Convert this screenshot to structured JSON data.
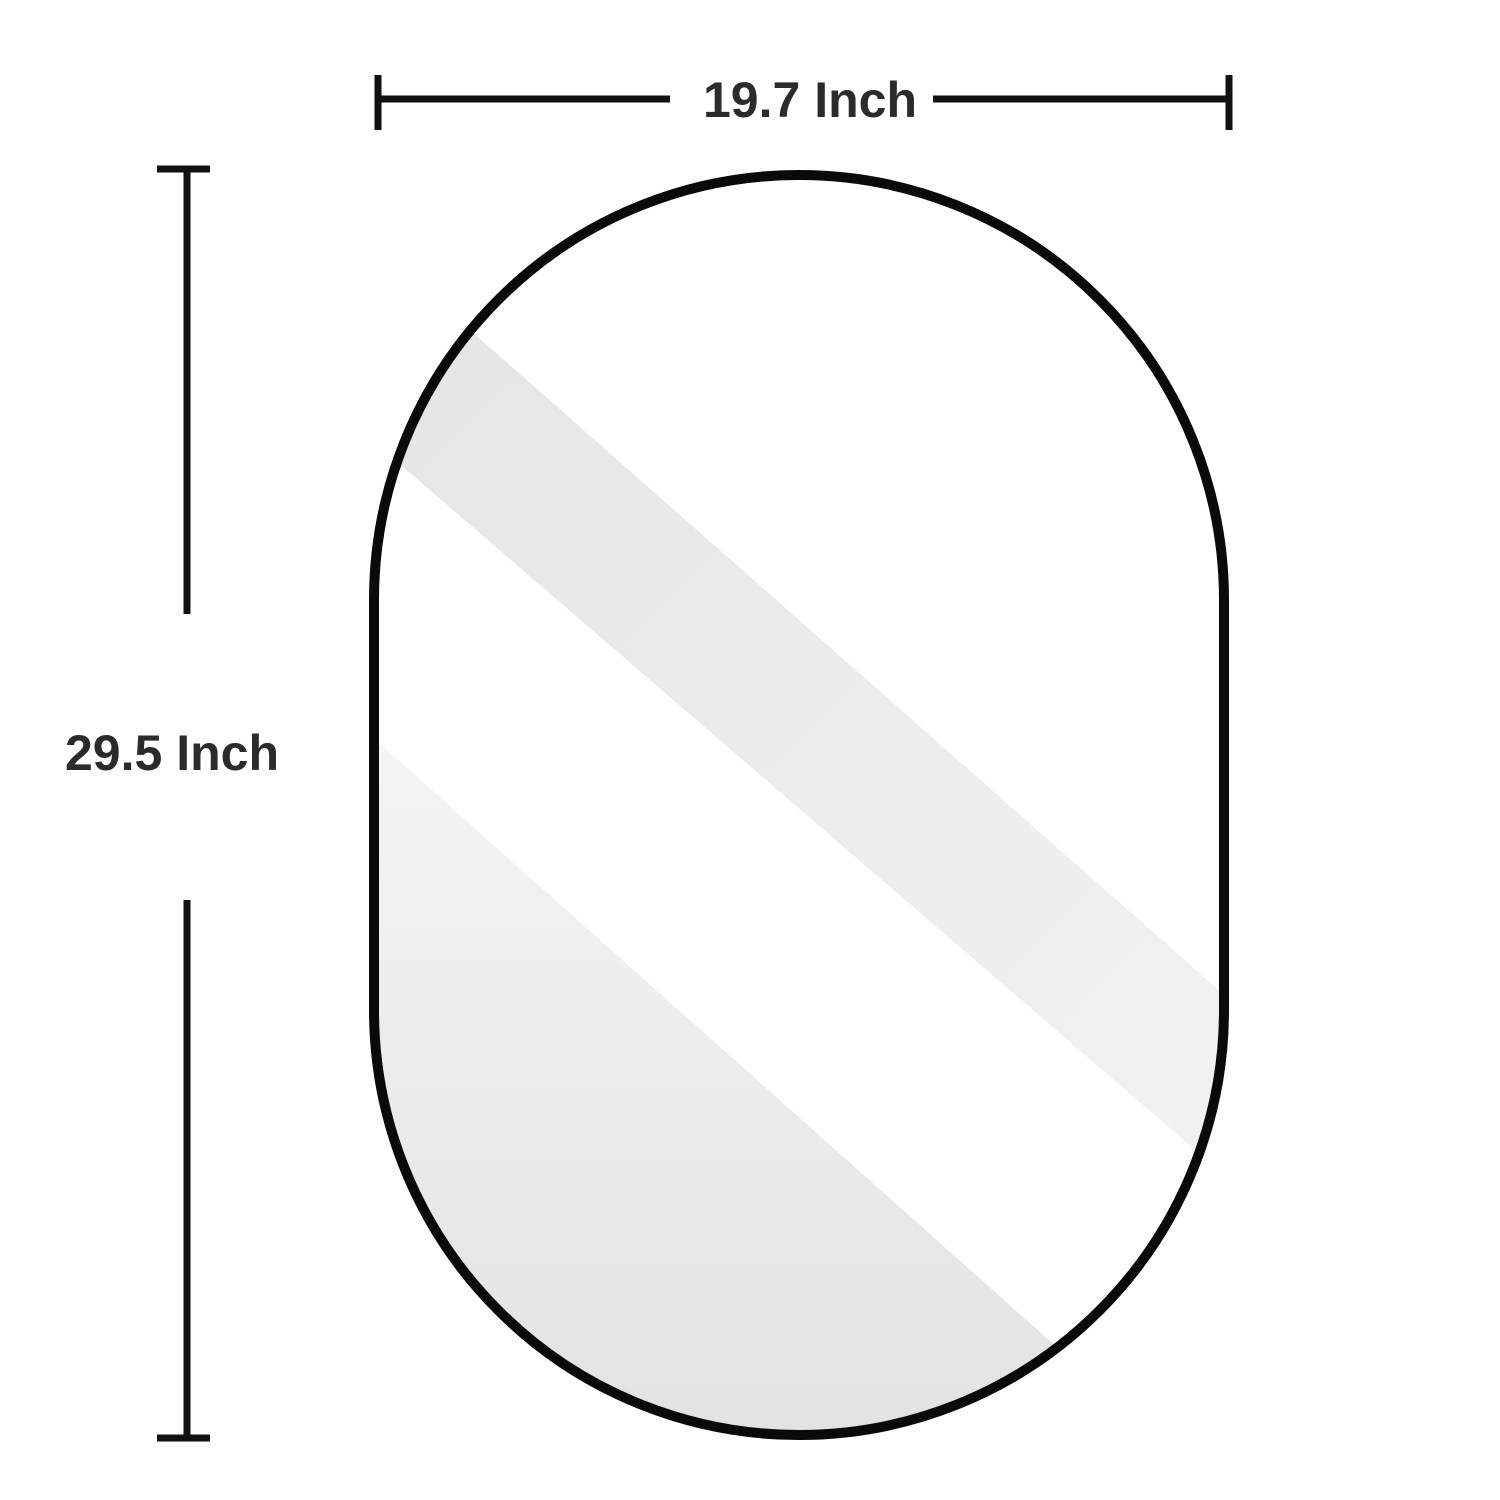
{
  "dimensions": {
    "width_label": "19.7 Inch",
    "height_label": "29.5 Inch"
  },
  "colors": {
    "frame": "#0a0a0a",
    "dimension_line": "#111111",
    "dimension_text": "#2b2b2b",
    "glass": "#ffffff",
    "reflection": "#e9e9e9"
  },
  "shape": "oval-pill-mirror"
}
